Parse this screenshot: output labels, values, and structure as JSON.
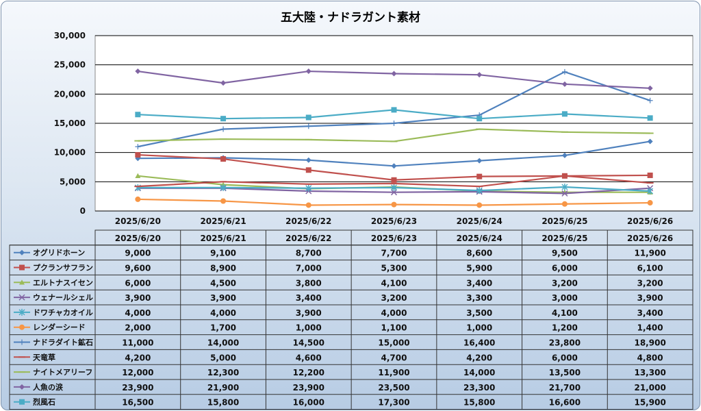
{
  "chart_data": {
    "type": "line",
    "title": "五大陸・ナドラガント素材",
    "categories": [
      "2025/6/20",
      "2025/6/21",
      "2025/6/22",
      "2025/6/23",
      "2025/6/24",
      "2025/6/25",
      "2025/6/26"
    ],
    "y_ticks": [
      "0",
      "5,000",
      "10,000",
      "15,000",
      "20,000",
      "25,000",
      "30,000"
    ],
    "ylim": [
      0,
      30000
    ],
    "grid": true,
    "legend": "data-table-below",
    "series": [
      {
        "name": "オグリドホーン",
        "color": "#4f81bd",
        "marker": "diamond",
        "values": [
          9000,
          9100,
          8700,
          7700,
          8600,
          9500,
          11900
        ],
        "labels": [
          "9,000",
          "9,100",
          "8,700",
          "7,700",
          "8,600",
          "9,500",
          "11,900"
        ]
      },
      {
        "name": "プクランサフラン",
        "color": "#c0504d",
        "marker": "square",
        "values": [
          9600,
          8900,
          7000,
          5300,
          5900,
          6000,
          6100
        ],
        "labels": [
          "9,600",
          "8,900",
          "7,000",
          "5,300",
          "5,900",
          "6,000",
          "6,100"
        ]
      },
      {
        "name": "エルトナスイセン",
        "color": "#9bbb59",
        "marker": "triangle",
        "values": [
          6000,
          4500,
          3800,
          4100,
          3400,
          3200,
          3200
        ],
        "labels": [
          "6,000",
          "4,500",
          "3,800",
          "4,100",
          "3,400",
          "3,200",
          "3,200"
        ]
      },
      {
        "name": "ウェナールシェル",
        "color": "#8064a2",
        "marker": "x",
        "values": [
          3900,
          3900,
          3400,
          3200,
          3300,
          3000,
          3900
        ],
        "labels": [
          "3,900",
          "3,900",
          "3,400",
          "3,200",
          "3,300",
          "3,000",
          "3,900"
        ]
      },
      {
        "name": "ドワチャカオイル",
        "color": "#4bacc6",
        "marker": "star",
        "values": [
          4000,
          4000,
          3900,
          4000,
          3500,
          4100,
          3400
        ],
        "labels": [
          "4,000",
          "4,000",
          "3,900",
          "4,000",
          "3,500",
          "4,100",
          "3,400"
        ]
      },
      {
        "name": "レンダーシード",
        "color": "#f79646",
        "marker": "circle",
        "values": [
          2000,
          1700,
          1000,
          1100,
          1000,
          1200,
          1400
        ],
        "labels": [
          "2,000",
          "1,700",
          "1,000",
          "1,100",
          "1,000",
          "1,200",
          "1,400"
        ]
      },
      {
        "name": "ナドラダイト鉱石",
        "color": "#4f81bd",
        "marker": "plus",
        "values": [
          11000,
          14000,
          14500,
          15000,
          16400,
          23800,
          18900
        ],
        "labels": [
          "11,000",
          "14,000",
          "14,500",
          "15,000",
          "16,400",
          "23,800",
          "18,900"
        ]
      },
      {
        "name": "天竜草",
        "color": "#c0504d",
        "marker": "dash",
        "values": [
          4200,
          5000,
          4600,
          4700,
          4200,
          6000,
          4800
        ],
        "labels": [
          "4,200",
          "5,000",
          "4,600",
          "4,700",
          "4,200",
          "6,000",
          "4,800"
        ]
      },
      {
        "name": "ナイトメアリーフ",
        "color": "#9bbb59",
        "marker": "dash",
        "values": [
          12000,
          12300,
          12200,
          11900,
          14000,
          13500,
          13300
        ],
        "labels": [
          "12,000",
          "12,300",
          "12,200",
          "11,900",
          "14,000",
          "13,500",
          "13,300"
        ]
      },
      {
        "name": "人魚の涙",
        "color": "#8064a2",
        "marker": "diamond",
        "values": [
          23900,
          21900,
          23900,
          23500,
          23300,
          21700,
          21000
        ],
        "labels": [
          "23,900",
          "21,900",
          "23,900",
          "23,500",
          "23,300",
          "21,700",
          "21,000"
        ]
      },
      {
        "name": "烈風石",
        "color": "#4bacc6",
        "marker": "square",
        "values": [
          16500,
          15800,
          16000,
          17300,
          15800,
          16600,
          15900
        ],
        "labels": [
          "16,500",
          "15,800",
          "16,000",
          "17,300",
          "15,800",
          "16,600",
          "15,900"
        ]
      }
    ]
  }
}
